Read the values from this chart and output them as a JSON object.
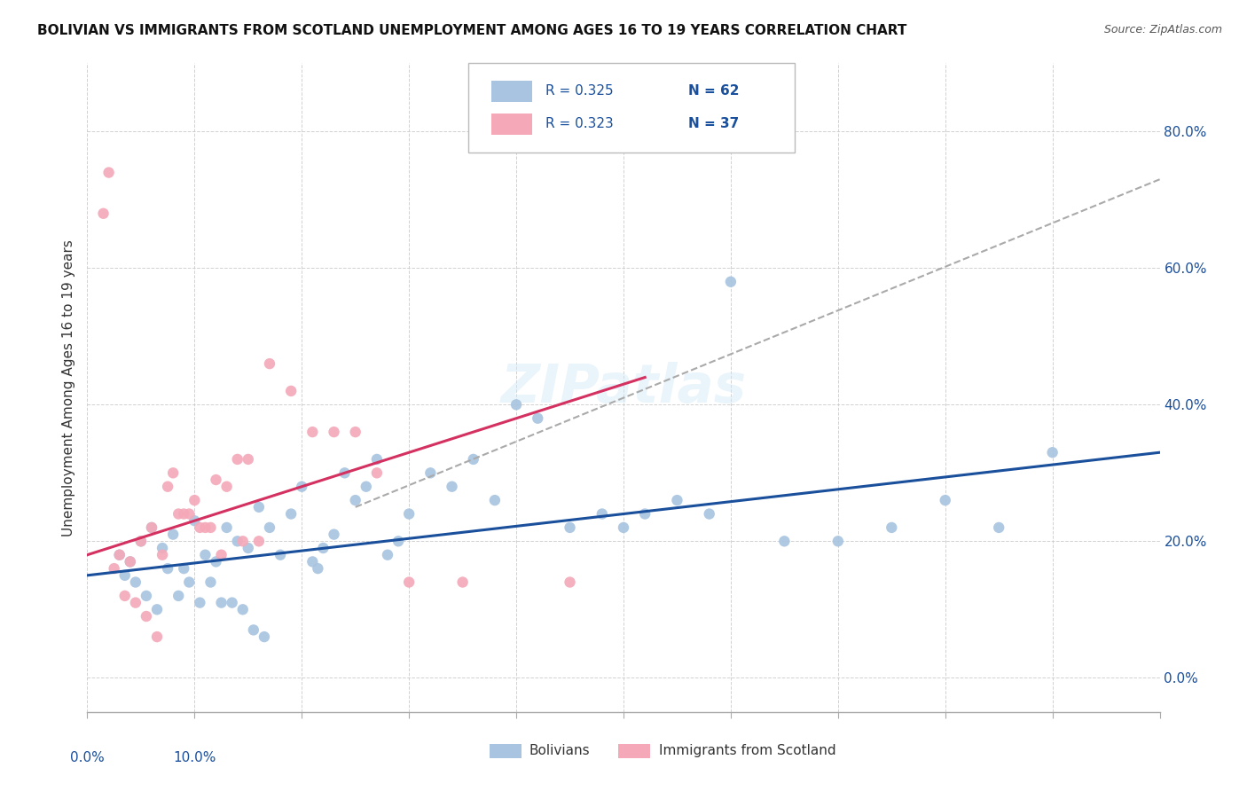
{
  "title": "BOLIVIAN VS IMMIGRANTS FROM SCOTLAND UNEMPLOYMENT AMONG AGES 16 TO 19 YEARS CORRELATION CHART",
  "source": "Source: ZipAtlas.com",
  "ylabel": "Unemployment Among Ages 16 to 19 years",
  "xlim": [
    0.0,
    10.0
  ],
  "ylim": [
    -5.0,
    90.0
  ],
  "yticks": [
    0,
    20,
    40,
    60,
    80
  ],
  "ytick_labels": [
    "0.0%",
    "20.0%",
    "40.0%",
    "60.0%",
    "80.0%"
  ],
  "label1": "Bolivians",
  "label2": "Immigrants from Scotland",
  "color1": "#a8c4e0",
  "color2": "#f4a8b8",
  "trend1_color": "#1a4f9c",
  "trend2_color": "#d43060",
  "dashed_color": "#aaaaaa",
  "bolivians_x": [
    0.3,
    0.4,
    0.5,
    0.6,
    0.7,
    0.8,
    0.9,
    1.0,
    1.1,
    1.2,
    1.3,
    1.4,
    1.5,
    1.6,
    1.7,
    1.8,
    1.9,
    2.0,
    2.1,
    2.2,
    2.3,
    2.4,
    2.5,
    2.6,
    2.7,
    2.8,
    2.9,
    3.0,
    3.2,
    3.4,
    3.6,
    3.8,
    4.0,
    4.2,
    4.5,
    4.8,
    5.0,
    5.2,
    5.5,
    5.8,
    6.0,
    6.5,
    7.0,
    7.5,
    8.0,
    8.5,
    9.0,
    0.35,
    0.45,
    0.55,
    0.65,
    0.75,
    0.85,
    0.95,
    1.05,
    1.15,
    1.25,
    1.35,
    1.45,
    1.55,
    1.65,
    2.15
  ],
  "bolivians_y": [
    18,
    17,
    20,
    22,
    19,
    21,
    16,
    23,
    18,
    17,
    22,
    20,
    19,
    25,
    22,
    18,
    24,
    28,
    17,
    19,
    21,
    30,
    26,
    28,
    32,
    18,
    20,
    24,
    30,
    28,
    32,
    26,
    40,
    38,
    22,
    24,
    22,
    24,
    26,
    24,
    58,
    20,
    20,
    22,
    26,
    22,
    33,
    15,
    14,
    12,
    10,
    16,
    12,
    14,
    11,
    14,
    11,
    11,
    10,
    7,
    6,
    16
  ],
  "scotland_x": [
    0.2,
    0.3,
    0.4,
    0.5,
    0.6,
    0.7,
    0.8,
    0.9,
    1.0,
    1.1,
    1.2,
    1.3,
    1.4,
    1.5,
    1.6,
    1.7,
    1.9,
    2.1,
    2.3,
    2.5,
    2.7,
    3.0,
    3.5,
    4.5,
    0.25,
    0.35,
    0.45,
    0.55,
    0.65,
    0.75,
    0.85,
    0.95,
    1.05,
    1.15,
    1.25,
    1.45,
    0.15
  ],
  "scotland_y": [
    74,
    18,
    17,
    20,
    22,
    18,
    30,
    24,
    26,
    22,
    29,
    28,
    32,
    32,
    20,
    46,
    42,
    36,
    36,
    36,
    30,
    14,
    14,
    14,
    16,
    12,
    11,
    9,
    6,
    28,
    24,
    24,
    22,
    22,
    18,
    20,
    68
  ],
  "trend1_x0": 0.0,
  "trend1_x1": 10.0,
  "trend1_y0": 15.0,
  "trend1_y1": 33.0,
  "trend2_x0": 0.0,
  "trend2_x1": 5.2,
  "trend2_y0": 18.0,
  "trend2_y1": 44.0,
  "dashed_x0": 2.5,
  "dashed_x1": 10.0,
  "dashed_y0": 25.0,
  "dashed_y1": 73.0,
  "background_color": "#ffffff",
  "grid_color": "#cccccc",
  "watermark": "ZIPatlas"
}
